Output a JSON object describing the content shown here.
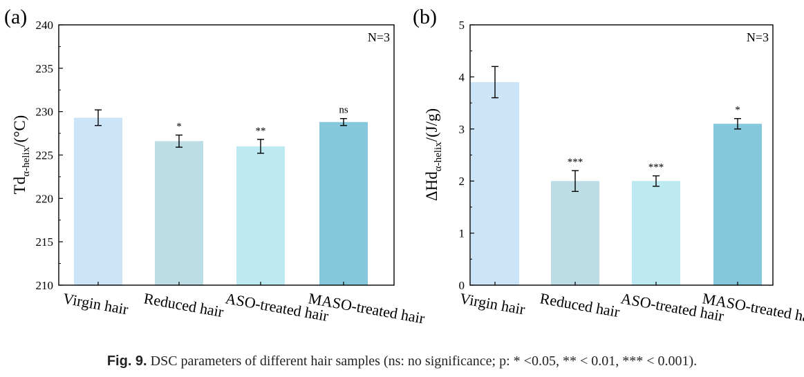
{
  "caption": {
    "label": "Fig. 9.",
    "text": "DSC parameters of different hair samples (ns: no significance; p: * <0.05, ** < 0.01, *** < 0.001)."
  },
  "chart_data": [
    {
      "type": "bar",
      "panel_label": "(a)",
      "ylabel_main": "Td",
      "ylabel_sub": "α-helix",
      "ylabel_unit": "/(°C)",
      "annotation": "N=3",
      "categories": [
        "Virgin hair",
        "Reduced hair",
        "ASO-treated hair",
        "MASO-treated hair"
      ],
      "values": [
        229.3,
        226.6,
        226.0,
        228.8
      ],
      "errors": [
        0.9,
        0.7,
        0.8,
        0.4
      ],
      "significance": [
        "",
        "*",
        "**",
        "ns"
      ],
      "colors": [
        "#cce4f8",
        "#bcdce6",
        "#bdeaf2",
        "#86c8db"
      ],
      "ylim": [
        210,
        240
      ],
      "yticks": [
        210,
        215,
        220,
        225,
        230,
        235,
        240
      ]
    },
    {
      "type": "bar",
      "panel_label": "(b)",
      "ylabel_main": "ΔHd",
      "ylabel_sub": "α-helix",
      "ylabel_unit": "/(J/g)",
      "annotation": "N=3",
      "categories": [
        "Virgin hair",
        "Reduced hair",
        "ASO-treated hair",
        "MASO-treated hair"
      ],
      "values": [
        3.9,
        2.0,
        2.0,
        3.1
      ],
      "errors": [
        0.3,
        0.2,
        0.1,
        0.1
      ],
      "significance": [
        "",
        "***",
        "***",
        "*"
      ],
      "colors": [
        "#cce4f8",
        "#bcdce6",
        "#bdeaf2",
        "#86c8db"
      ],
      "ylim": [
        0,
        5
      ],
      "yticks": [
        0,
        1,
        2,
        3,
        4,
        5
      ]
    }
  ]
}
